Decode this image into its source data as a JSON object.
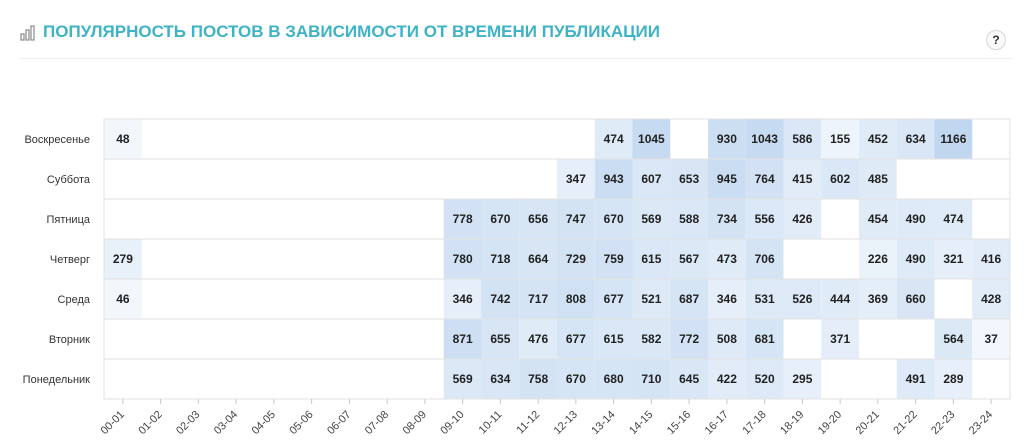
{
  "header": {
    "title": "ПОПУЛЯРНОСТЬ ПОСТОВ В ЗАВИСИМОСТИ ОТ ВРЕМЕНИ ПУБЛИКАЦИИ",
    "icon": "bar-chart-icon",
    "help_label": "?"
  },
  "chart_data": {
    "type": "heatmap",
    "title": "ПОПУЛЯРНОСТЬ ПОСТОВ В ЗАВИСИМОСТИ ОТ ВРЕМЕНИ ПУБЛИКАЦИИ",
    "rows": [
      "Воскресенье",
      "Суббота",
      "Пятница",
      "Четверг",
      "Среда",
      "Вторник",
      "Понедельник"
    ],
    "columns": [
      "00-01",
      "01-02",
      "02-03",
      "03-04",
      "04-05",
      "05-06",
      "06-07",
      "07-08",
      "08-09",
      "09-10",
      "10-11",
      "11-12",
      "12-13",
      "13-14",
      "14-15",
      "15-16",
      "16-17",
      "17-18",
      "18-19",
      "19-20",
      "20-21",
      "21-22",
      "22-23",
      "23-24"
    ],
    "values": [
      [
        48,
        null,
        null,
        null,
        null,
        null,
        null,
        null,
        null,
        null,
        null,
        null,
        null,
        474,
        1045,
        null,
        930,
        1043,
        586,
        155,
        452,
        634,
        1166,
        null
      ],
      [
        null,
        null,
        null,
        null,
        null,
        null,
        null,
        null,
        null,
        null,
        null,
        null,
        347,
        943,
        607,
        653,
        945,
        764,
        415,
        602,
        485,
        null,
        null,
        null
      ],
      [
        null,
        null,
        null,
        null,
        null,
        null,
        null,
        null,
        null,
        778,
        670,
        656,
        747,
        670,
        569,
        588,
        734,
        556,
        426,
        null,
        454,
        490,
        474,
        null
      ],
      [
        279,
        null,
        null,
        null,
        null,
        null,
        null,
        null,
        null,
        780,
        718,
        664,
        729,
        759,
        615,
        567,
        473,
        706,
        null,
        null,
        226,
        490,
        321,
        416
      ],
      [
        46,
        null,
        null,
        null,
        null,
        null,
        null,
        null,
        null,
        346,
        742,
        717,
        808,
        677,
        521,
        687,
        346,
        531,
        526,
        444,
        369,
        660,
        null,
        428
      ],
      [
        null,
        null,
        null,
        null,
        null,
        null,
        null,
        null,
        null,
        871,
        655,
        476,
        677,
        615,
        582,
        772,
        508,
        681,
        null,
        371,
        null,
        null,
        564,
        37
      ],
      [
        null,
        null,
        null,
        null,
        null,
        null,
        null,
        null,
        null,
        569,
        634,
        758,
        670,
        680,
        710,
        645,
        422,
        520,
        295,
        null,
        null,
        491,
        289,
        null
      ]
    ],
    "color_scale": {
      "low": "#f4f8fd",
      "high": "#bfd6ef",
      "min": 0,
      "max": 1200
    },
    "grid": true
  }
}
